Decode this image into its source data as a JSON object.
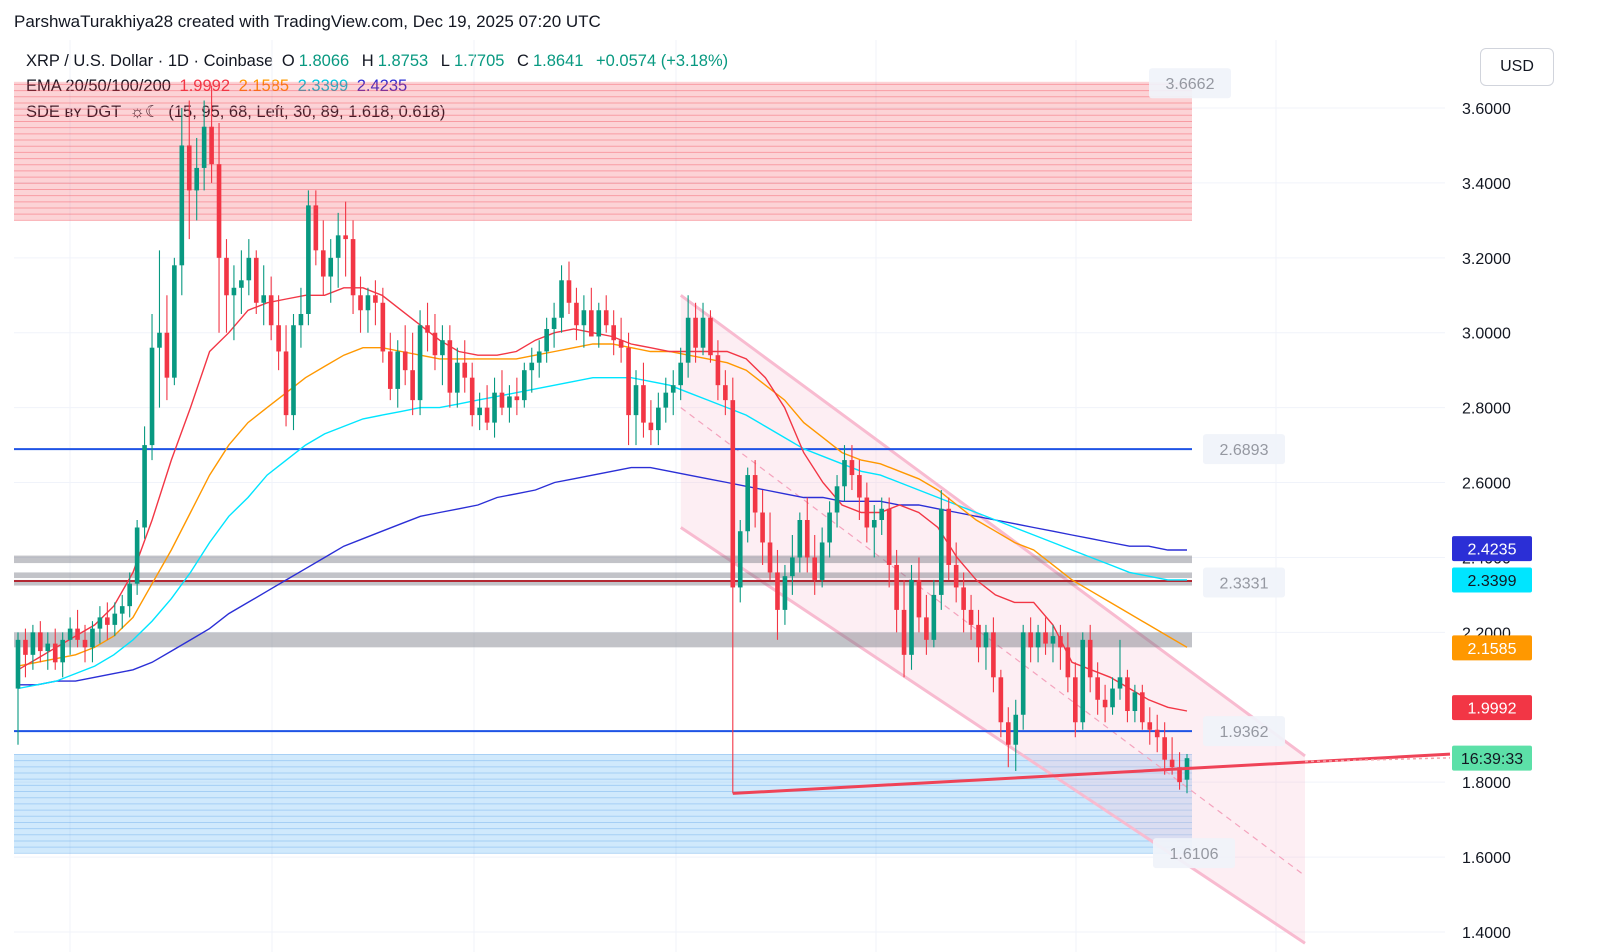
{
  "credit": "ParshwaTurakhiya28 created with TradingView.com, Dec 19, 2025 07:20 UTC",
  "legend": {
    "symbol": "XRP / U.S. Dollar · 1D · Coinbase",
    "o_label": "O",
    "o_value": "1.8066",
    "h_label": "H",
    "h_value": "1.8753",
    "l_label": "L",
    "l_value": "1.7705",
    "c_label": "C",
    "c_value": "1.8641",
    "change": "+0.0574 (+3.18%)",
    "ema_label": "EMA 20/50/100/200",
    "ema20": "1.9992",
    "ema50": "2.1585",
    "ema100": "2.3399",
    "ema200": "2.4235",
    "sde_label": "SDE ʙʏ DGT",
    "sde_icons": "☼☾",
    "sde_params": "(15, 95, 68, Left, 30, 89, 1.618, 0.618)"
  },
  "currency": "USD",
  "colors": {
    "up": "#089981",
    "down": "#f23645",
    "ema20": "#f23645",
    "ema50": "#ff9800",
    "ema100": "#00e5ff",
    "ema200": "#2b2fd6",
    "level_line": "#1e53e5",
    "channel": "#f8bbd0",
    "trendline": "#ef4357"
  },
  "chart_data": {
    "type": "candlestick",
    "ylim": [
      1.4,
      3.72
    ],
    "y_ticks": [
      "3.6000",
      "3.4000",
      "3.2000",
      "3.0000",
      "2.8000",
      "2.6000",
      "2.4000",
      "2.2000",
      "1.8000",
      "1.6000",
      "1.4000"
    ],
    "y_tick_values": [
      3.6,
      3.4,
      3.2,
      3.0,
      2.8,
      2.6,
      2.4,
      2.2,
      1.8,
      1.6,
      1.4
    ],
    "ohlc": [
      [
        2.05,
        2.2,
        1.9,
        2.18
      ],
      [
        2.18,
        2.21,
        2.08,
        2.14
      ],
      [
        2.14,
        2.22,
        2.1,
        2.2
      ],
      [
        2.2,
        2.23,
        2.12,
        2.15
      ],
      [
        2.15,
        2.2,
        2.1,
        2.17
      ],
      [
        2.17,
        2.21,
        2.1,
        2.12
      ],
      [
        2.12,
        2.2,
        2.08,
        2.18
      ],
      [
        2.18,
        2.24,
        2.14,
        2.21
      ],
      [
        2.21,
        2.26,
        2.16,
        2.18
      ],
      [
        2.18,
        2.22,
        2.12,
        2.16
      ],
      [
        2.16,
        2.23,
        2.12,
        2.21
      ],
      [
        2.21,
        2.27,
        2.17,
        2.24
      ],
      [
        2.24,
        2.28,
        2.18,
        2.22
      ],
      [
        2.22,
        2.28,
        2.19,
        2.25
      ],
      [
        2.25,
        2.3,
        2.21,
        2.27
      ],
      [
        2.27,
        2.36,
        2.24,
        2.33
      ],
      [
        2.33,
        2.5,
        2.3,
        2.48
      ],
      [
        2.48,
        2.75,
        2.45,
        2.7
      ],
      [
        2.7,
        3.05,
        2.66,
        2.96
      ],
      [
        2.96,
        3.22,
        2.8,
        3.0
      ],
      [
        3.0,
        3.1,
        2.82,
        2.88
      ],
      [
        2.88,
        3.2,
        2.86,
        3.18
      ],
      [
        3.18,
        3.6,
        3.1,
        3.5
      ],
      [
        3.5,
        3.62,
        3.25,
        3.38
      ],
      [
        3.38,
        3.52,
        3.3,
        3.44
      ],
      [
        3.44,
        3.62,
        3.38,
        3.55
      ],
      [
        3.55,
        3.66,
        3.4,
        3.45
      ],
      [
        3.45,
        3.56,
        3.0,
        3.2
      ],
      [
        3.2,
        3.25,
        3.0,
        3.1
      ],
      [
        3.1,
        3.18,
        2.98,
        3.12
      ],
      [
        3.12,
        3.22,
        3.05,
        3.14
      ],
      [
        3.14,
        3.25,
        3.1,
        3.2
      ],
      [
        3.2,
        3.22,
        3.05,
        3.08
      ],
      [
        3.08,
        3.18,
        3.02,
        3.1
      ],
      [
        3.1,
        3.15,
        2.98,
        3.02
      ],
      [
        3.02,
        3.1,
        2.9,
        2.95
      ],
      [
        2.95,
        3.02,
        2.75,
        2.78
      ],
      [
        2.78,
        3.05,
        2.74,
        3.02
      ],
      [
        3.02,
        3.12,
        2.96,
        3.05
      ],
      [
        3.05,
        3.38,
        3.02,
        3.34
      ],
      [
        3.34,
        3.38,
        3.18,
        3.22
      ],
      [
        3.22,
        3.3,
        3.1,
        3.15
      ],
      [
        3.15,
        3.25,
        3.08,
        3.2
      ],
      [
        3.2,
        3.32,
        3.12,
        3.26
      ],
      [
        3.26,
        3.35,
        3.15,
        3.25
      ],
      [
        3.25,
        3.3,
        3.05,
        3.1
      ],
      [
        3.1,
        3.15,
        3.0,
        3.06
      ],
      [
        3.06,
        3.12,
        3.0,
        3.1
      ],
      [
        3.1,
        3.14,
        3.02,
        3.08
      ],
      [
        3.08,
        3.12,
        2.92,
        2.95
      ],
      [
        2.95,
        3.0,
        2.82,
        2.85
      ],
      [
        2.85,
        2.98,
        2.8,
        2.95
      ],
      [
        2.95,
        3.02,
        2.86,
        2.9
      ],
      [
        2.9,
        3.0,
        2.78,
        2.82
      ],
      [
        2.82,
        3.06,
        2.78,
        3.02
      ],
      [
        3.02,
        3.08,
        2.95,
        3.0
      ],
      [
        3.0,
        3.05,
        2.9,
        2.94
      ],
      [
        2.94,
        3.02,
        2.86,
        2.98
      ],
      [
        2.98,
        3.02,
        2.8,
        2.84
      ],
      [
        2.84,
        2.96,
        2.8,
        2.92
      ],
      [
        2.92,
        2.98,
        2.84,
        2.88
      ],
      [
        2.88,
        2.92,
        2.75,
        2.78
      ],
      [
        2.78,
        2.84,
        2.74,
        2.8
      ],
      [
        2.8,
        2.86,
        2.74,
        2.76
      ],
      [
        2.76,
        2.88,
        2.72,
        2.84
      ],
      [
        2.84,
        2.9,
        2.78,
        2.8
      ],
      [
        2.8,
        2.86,
        2.76,
        2.83
      ],
      [
        2.83,
        2.88,
        2.78,
        2.82
      ],
      [
        2.82,
        2.92,
        2.8,
        2.9
      ],
      [
        2.9,
        2.96,
        2.84,
        2.92
      ],
      [
        2.92,
        2.98,
        2.88,
        2.95
      ],
      [
        2.95,
        3.04,
        2.92,
        3.01
      ],
      [
        3.01,
        3.08,
        2.96,
        3.04
      ],
      [
        3.04,
        3.18,
        3.0,
        3.14
      ],
      [
        3.14,
        3.19,
        3.05,
        3.08
      ],
      [
        3.08,
        3.12,
        2.98,
        3.02
      ],
      [
        3.02,
        3.1,
        2.96,
        3.06
      ],
      [
        3.06,
        3.12,
        3.0,
        2.99
      ],
      [
        2.99,
        3.08,
        2.96,
        3.06
      ],
      [
        3.06,
        3.1,
        3.0,
        3.02
      ],
      [
        3.02,
        3.06,
        2.94,
        2.98
      ],
      [
        2.98,
        3.04,
        2.92,
        2.96
      ],
      [
        2.96,
        3.0,
        2.7,
        2.78
      ],
      [
        2.78,
        2.9,
        2.7,
        2.86
      ],
      [
        2.86,
        2.92,
        2.72,
        2.76
      ],
      [
        2.76,
        2.82,
        2.7,
        2.74
      ],
      [
        2.74,
        2.84,
        2.7,
        2.8
      ],
      [
        2.8,
        2.88,
        2.76,
        2.84
      ],
      [
        2.84,
        2.9,
        2.78,
        2.86
      ],
      [
        2.86,
        2.96,
        2.82,
        2.92
      ],
      [
        2.92,
        3.1,
        2.88,
        3.04
      ],
      [
        3.04,
        3.08,
        2.92,
        2.96
      ],
      [
        2.96,
        3.08,
        2.94,
        3.04
      ],
      [
        3.04,
        3.06,
        2.92,
        2.94
      ],
      [
        2.94,
        2.98,
        2.82,
        2.86
      ],
      [
        2.86,
        2.9,
        2.78,
        2.82
      ],
      [
        2.82,
        2.88,
        1.77,
        2.32
      ],
      [
        2.32,
        2.5,
        2.28,
        2.47
      ],
      [
        2.47,
        2.64,
        2.44,
        2.62
      ],
      [
        2.62,
        2.66,
        2.48,
        2.52
      ],
      [
        2.52,
        2.58,
        2.38,
        2.44
      ],
      [
        2.44,
        2.52,
        2.34,
        2.36
      ],
      [
        2.36,
        2.42,
        2.18,
        2.26
      ],
      [
        2.26,
        2.38,
        2.22,
        2.35
      ],
      [
        2.35,
        2.46,
        2.3,
        2.4
      ],
      [
        2.4,
        2.52,
        2.36,
        2.5
      ],
      [
        2.5,
        2.56,
        2.36,
        2.4
      ],
      [
        2.4,
        2.46,
        2.3,
        2.34
      ],
      [
        2.34,
        2.48,
        2.32,
        2.44
      ],
      [
        2.44,
        2.55,
        2.4,
        2.52
      ],
      [
        2.52,
        2.62,
        2.48,
        2.59
      ],
      [
        2.59,
        2.7,
        2.55,
        2.66
      ],
      [
        2.66,
        2.7,
        2.58,
        2.62
      ],
      [
        2.62,
        2.66,
        2.5,
        2.56
      ],
      [
        2.56,
        2.6,
        2.44,
        2.48
      ],
      [
        2.48,
        2.54,
        2.4,
        2.5
      ],
      [
        2.5,
        2.56,
        2.46,
        2.53
      ],
      [
        2.53,
        2.56,
        2.32,
        2.38
      ],
      [
        2.38,
        2.42,
        2.2,
        2.26
      ],
      [
        2.26,
        2.34,
        2.08,
        2.14
      ],
      [
        2.14,
        2.38,
        2.1,
        2.34
      ],
      [
        2.34,
        2.4,
        2.2,
        2.24
      ],
      [
        2.24,
        2.3,
        2.14,
        2.18
      ],
      [
        2.18,
        2.34,
        2.16,
        2.3
      ],
      [
        2.3,
        2.58,
        2.26,
        2.53
      ],
      [
        2.53,
        2.56,
        2.34,
        2.38
      ],
      [
        2.38,
        2.44,
        2.28,
        2.32
      ],
      [
        2.32,
        2.36,
        2.2,
        2.26
      ],
      [
        2.26,
        2.3,
        2.18,
        2.22
      ],
      [
        2.22,
        2.26,
        2.12,
        2.16
      ],
      [
        2.16,
        2.22,
        2.1,
        2.2
      ],
      [
        2.2,
        2.24,
        2.04,
        2.08
      ],
      [
        2.08,
        2.1,
        1.92,
        1.96
      ],
      [
        1.96,
        2.0,
        1.84,
        1.9
      ],
      [
        1.9,
        2.02,
        1.83,
        1.98
      ],
      [
        1.98,
        2.22,
        1.94,
        2.2
      ],
      [
        2.2,
        2.24,
        2.12,
        2.16
      ],
      [
        2.16,
        2.22,
        2.12,
        2.2
      ],
      [
        2.2,
        2.24,
        2.14,
        2.17
      ],
      [
        2.17,
        2.22,
        2.12,
        2.19
      ],
      [
        2.19,
        2.22,
        2.1,
        2.16
      ],
      [
        2.16,
        2.2,
        2.04,
        2.08
      ],
      [
        2.08,
        2.12,
        1.92,
        1.96
      ],
      [
        1.96,
        2.2,
        1.94,
        2.18
      ],
      [
        2.18,
        2.22,
        2.04,
        2.08
      ],
      [
        2.08,
        2.12,
        1.98,
        2.02
      ],
      [
        2.02,
        2.06,
        1.96,
        2.0
      ],
      [
        2.0,
        2.08,
        1.98,
        2.05
      ],
      [
        2.05,
        2.18,
        2.02,
        2.08
      ],
      [
        2.08,
        2.1,
        1.96,
        1.99
      ],
      [
        1.99,
        2.06,
        1.96,
        2.04
      ],
      [
        2.04,
        2.06,
        1.94,
        1.96
      ],
      [
        1.96,
        2.0,
        1.9,
        1.94
      ],
      [
        1.94,
        1.98,
        1.88,
        1.92
      ],
      [
        1.92,
        1.96,
        1.82,
        1.86
      ],
      [
        1.86,
        1.92,
        1.82,
        1.84
      ],
      [
        1.84,
        1.88,
        1.78,
        1.8
      ],
      [
        1.8066,
        1.8753,
        1.7705,
        1.8641
      ]
    ],
    "ema20": [
      2.1,
      2.13,
      2.16,
      2.19,
      2.22,
      2.27,
      2.36,
      2.5,
      2.66,
      2.8,
      2.95,
      3.0,
      3.06,
      3.08,
      3.09,
      3.1,
      3.1,
      3.12,
      3.12,
      3.1,
      3.06,
      3.02,
      2.98,
      2.95,
      2.94,
      2.94,
      2.95,
      2.98,
      3.0,
      3.01,
      3.0,
      2.99,
      2.97,
      2.96,
      2.95,
      2.95,
      2.95,
      2.95,
      2.93,
      2.88,
      2.8,
      2.68,
      2.6,
      2.54,
      2.52,
      2.52,
      2.54,
      2.52,
      2.48,
      2.4,
      2.34,
      2.3,
      2.28,
      2.28,
      2.22,
      2.12,
      2.1,
      2.08,
      2.05,
      2.02,
      2.0,
      1.99
    ],
    "ema50": [
      2.11,
      2.12,
      2.13,
      2.14,
      2.16,
      2.19,
      2.24,
      2.33,
      2.42,
      2.52,
      2.62,
      2.7,
      2.76,
      2.8,
      2.84,
      2.88,
      2.91,
      2.94,
      2.96,
      2.96,
      2.95,
      2.94,
      2.93,
      2.93,
      2.93,
      2.93,
      2.93,
      2.94,
      2.95,
      2.96,
      2.97,
      2.97,
      2.96,
      2.95,
      2.95,
      2.94,
      2.93,
      2.92,
      2.9,
      2.86,
      2.82,
      2.76,
      2.72,
      2.68,
      2.66,
      2.65,
      2.63,
      2.61,
      2.58,
      2.54,
      2.5,
      2.47,
      2.44,
      2.42,
      2.38,
      2.34,
      2.31,
      2.28,
      2.25,
      2.22,
      2.19,
      2.16
    ],
    "ema100": [
      2.05,
      2.06,
      2.07,
      2.09,
      2.11,
      2.14,
      2.18,
      2.23,
      2.29,
      2.36,
      2.44,
      2.51,
      2.56,
      2.62,
      2.66,
      2.7,
      2.73,
      2.75,
      2.77,
      2.78,
      2.79,
      2.8,
      2.8,
      2.81,
      2.82,
      2.83,
      2.84,
      2.85,
      2.86,
      2.87,
      2.88,
      2.88,
      2.88,
      2.87,
      2.86,
      2.84,
      2.82,
      2.8,
      2.78,
      2.75,
      2.72,
      2.69,
      2.67,
      2.65,
      2.63,
      2.62,
      2.6,
      2.58,
      2.56,
      2.54,
      2.52,
      2.5,
      2.48,
      2.46,
      2.44,
      2.42,
      2.4,
      2.38,
      2.36,
      2.35,
      2.34,
      2.34
    ],
    "ema200": [
      2.06,
      2.06,
      2.07,
      2.07,
      2.08,
      2.09,
      2.1,
      2.12,
      2.15,
      2.18,
      2.21,
      2.25,
      2.28,
      2.31,
      2.34,
      2.37,
      2.4,
      2.43,
      2.45,
      2.47,
      2.49,
      2.51,
      2.52,
      2.53,
      2.54,
      2.56,
      2.57,
      2.58,
      2.6,
      2.61,
      2.62,
      2.63,
      2.64,
      2.64,
      2.63,
      2.62,
      2.61,
      2.6,
      2.59,
      2.58,
      2.57,
      2.56,
      2.56,
      2.55,
      2.55,
      2.55,
      2.54,
      2.54,
      2.53,
      2.52,
      2.51,
      2.5,
      2.49,
      2.48,
      2.47,
      2.46,
      2.45,
      2.44,
      2.43,
      2.43,
      2.42,
      2.42
    ],
    "levels": [
      {
        "value": 2.6893,
        "label": "2.6893"
      },
      {
        "value": 1.9362,
        "label": "1.9362"
      }
    ],
    "level_labels": {
      "top": "3.6662",
      "bottom": "1.6106",
      "mid": "2.3331"
    },
    "price_flags": [
      {
        "value": 2.4235,
        "label": "2.4235",
        "bg": "#2b2fd6",
        "fg": "#ffffff"
      },
      {
        "value": 2.3399,
        "label": "2.3399",
        "bg": "#00e5ff",
        "fg": "#131722"
      },
      {
        "value": 2.1585,
        "label": "2.1585",
        "bg": "#ff9800",
        "fg": "#ffffff"
      },
      {
        "value": 1.9992,
        "label": "1.9992",
        "bg": "#f23645",
        "fg": "#ffffff"
      },
      {
        "value": 1.8641,
        "label": "16:39:33",
        "bg": "#5ce0a8",
        "fg": "#131722"
      }
    ],
    "supply_zone": [
      3.3,
      3.67
    ],
    "demand_zone": [
      1.61,
      1.875
    ],
    "gray_bands": [
      [
        2.385,
        2.405
      ],
      [
        2.345,
        2.36
      ],
      [
        2.325,
        2.34
      ],
      [
        2.16,
        2.2
      ]
    ],
    "channel": {
      "upper": [
        [
          3.1,
          0
        ],
        [
          1.87,
          1
        ]
      ],
      "lower": [
        [
          2.48,
          0
        ],
        [
          1.37,
          1
        ]
      ],
      "mid": [
        [
          2.8,
          0
        ],
        [
          1.55,
          1
        ]
      ]
    },
    "trendline": [
      1.77,
      1.875
    ]
  }
}
